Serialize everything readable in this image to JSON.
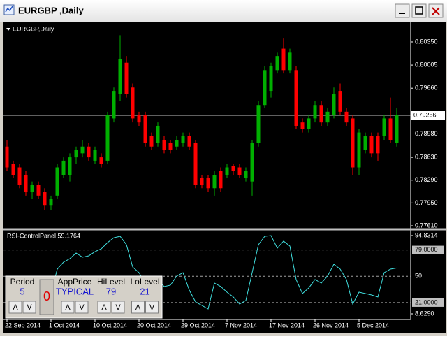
{
  "window": {
    "title": "EURGBP ,Daily"
  },
  "chart_data": [
    {
      "type": "candlestick",
      "title": "EURGBP,Daily",
      "categories": [
        "22 Sep 2014",
        null,
        null,
        null,
        null,
        null,
        null,
        "1 Oct 2014",
        null,
        null,
        null,
        null,
        null,
        null,
        "10 Oct 2014",
        null,
        null,
        null,
        null,
        null,
        null,
        "20 Oct 2014",
        null,
        null,
        null,
        null,
        null,
        null,
        "29 Oct 2014",
        null,
        null,
        null,
        null,
        null,
        null,
        "7 Nov 2014",
        null,
        null,
        null,
        null,
        null,
        null,
        "17 Nov 2014",
        null,
        null,
        null,
        null,
        null,
        null,
        "26 Nov 2014",
        null,
        null,
        null,
        null,
        null,
        null,
        "5 Dec 2014",
        null,
        null,
        null,
        null,
        null,
        null
      ],
      "open": [
        0.7879,
        0.7853,
        0.7848,
        0.7837,
        0.7811,
        0.7822,
        0.7811,
        0.7791,
        0.7806,
        0.7837,
        0.7837,
        0.7863,
        0.7869,
        0.7879,
        0.7858,
        0.7863,
        0.7858,
        0.7921,
        0.7957,
        0.8004,
        0.7967,
        0.7926,
        0.7926,
        0.7895,
        0.7884,
        0.7889,
        0.7884,
        0.7879,
        0.7884,
        0.7895,
        0.7884,
        0.7832,
        0.7832,
        0.7817,
        0.7843,
        0.7837,
        0.785,
        0.7848,
        0.7832,
        0.7827,
        0.7884,
        0.7941,
        0.7962,
        0.7993,
        0.8025,
        0.7993,
        0.7993,
        0.7915,
        0.7905,
        0.7921,
        0.7941,
        0.7915,
        0.7926,
        0.7962,
        0.7931,
        0.7921,
        0.7848,
        0.7874,
        0.7895,
        0.7895,
        0.7895,
        0.7921,
        0.7884
      ],
      "high": [
        0.7889,
        0.7858,
        0.7853,
        0.7843,
        0.7827,
        0.7827,
        0.7817,
        0.7806,
        0.7853,
        0.7863,
        0.7869,
        0.7879,
        0.7889,
        0.7884,
        0.7879,
        0.7869,
        0.7931,
        0.7967,
        0.8045,
        0.8014,
        0.7973,
        0.7931,
        0.7931,
        0.79,
        0.7915,
        0.7895,
        0.7889,
        0.7895,
        0.79,
        0.79,
        0.7889,
        0.7837,
        0.7837,
        0.7843,
        0.7848,
        0.7853,
        0.7853,
        0.7853,
        0.7848,
        0.7889,
        0.7947,
        0.7999,
        0.8004,
        0.8019,
        0.804,
        0.8025,
        0.7999,
        0.7921,
        0.7926,
        0.7947,
        0.7947,
        0.7936,
        0.7967,
        0.7973,
        0.7936,
        0.7926,
        0.7905,
        0.79,
        0.79,
        0.79,
        0.7926,
        0.7952,
        0.7936
      ],
      "low": [
        0.7843,
        0.7832,
        0.7817,
        0.7806,
        0.7801,
        0.7801,
        0.7785,
        0.7785,
        0.7801,
        0.7832,
        0.7827,
        0.7853,
        0.7863,
        0.7858,
        0.7853,
        0.7848,
        0.7853,
        0.7915,
        0.7947,
        0.7952,
        0.7915,
        0.791,
        0.7879,
        0.7874,
        0.7879,
        0.7869,
        0.7869,
        0.7874,
        0.7879,
        0.7874,
        0.7817,
        0.7817,
        0.7811,
        0.7806,
        0.7811,
        0.7832,
        0.7837,
        0.7832,
        0.7827,
        0.7806,
        0.7879,
        0.7936,
        0.7952,
        0.7988,
        0.7988,
        0.7988,
        0.7905,
        0.79,
        0.79,
        0.7915,
        0.791,
        0.791,
        0.7921,
        0.7926,
        0.791,
        0.7837,
        0.7837,
        0.7869,
        0.7863,
        0.7858,
        0.7889,
        0.7884,
        0.7879
      ],
      "close": [
        0.7848,
        0.7837,
        0.7822,
        0.7811,
        0.7822,
        0.7806,
        0.7791,
        0.7801,
        0.7848,
        0.7858,
        0.7863,
        0.7874,
        0.7879,
        0.7863,
        0.7874,
        0.7853,
        0.7926,
        0.7962,
        0.8009,
        0.7957,
        0.7921,
        0.7915,
        0.7884,
        0.7879,
        0.791,
        0.7874,
        0.7874,
        0.7889,
        0.7895,
        0.7879,
        0.7822,
        0.7822,
        0.7817,
        0.7837,
        0.7817,
        0.7848,
        0.7843,
        0.7837,
        0.7843,
        0.7884,
        0.7941,
        0.7993,
        0.7999,
        0.8014,
        0.7993,
        0.8019,
        0.791,
        0.7905,
        0.7921,
        0.7941,
        0.7915,
        0.7931,
        0.7957,
        0.7931,
        0.7915,
        0.7848,
        0.79,
        0.7895,
        0.7869,
        0.7869,
        0.7921,
        0.7889,
        0.7926
      ],
      "up_color": "#00b000",
      "down_color": "#ff0000",
      "ylim": [
        0.77579,
        0.80631
      ],
      "yticks": [
        {
          "value": 0.8035,
          "label": "0.80350"
        },
        {
          "value": 0.80005,
          "label": "0.80005"
        },
        {
          "value": 0.7966,
          "label": "0.79660"
        },
        {
          "value": 0.7898,
          "label": "0.78980"
        },
        {
          "value": 0.7863,
          "label": "0.78630"
        },
        {
          "value": 0.7829,
          "label": "0.78290"
        },
        {
          "value": 0.7795,
          "label": "0.77950"
        },
        {
          "value": 0.7761,
          "label": "0.77610"
        }
      ],
      "current_price": {
        "value": 0.79256,
        "label": "0.79256"
      }
    },
    {
      "type": "line",
      "title": "RSI-ControlPanel 59.1764",
      "values": [
        38.7,
        34.8,
        31,
        27.2,
        31,
        27.2,
        23.3,
        31,
        57.9,
        65.6,
        69.4,
        75.6,
        71,
        72.5,
        77.1,
        80.2,
        87.1,
        92.5,
        94,
        84.8,
        60.2,
        54,
        42.5,
        38.7,
        46.4,
        38.7,
        40.2,
        50.2,
        54,
        34.8,
        21.7,
        17.9,
        14,
        42.5,
        38.7,
        32.5,
        27.2,
        19.4,
        23.3,
        54,
        84.8,
        94,
        94.8,
        81,
        88.7,
        83.3,
        46.4,
        31,
        37.1,
        46.4,
        42.5,
        50.2,
        63.3,
        57.9,
        46.4,
        19.4,
        32.5,
        31,
        29.4,
        27.2,
        54,
        57.9,
        59.1764
      ],
      "color": "#40e0e0",
      "ylim": [
        8.629,
        94.8314
      ],
      "yticks": [
        94.8314,
        {
          "value": 8.629,
          "label": "8.6290"
        }
      ],
      "levels": [
        {
          "value": 79,
          "label": "79.0000",
          "boxed": true
        },
        {
          "value": 50,
          "label": "50",
          "boxed": false
        },
        {
          "value": 21,
          "label": "21.0000",
          "boxed": true
        }
      ]
    }
  ],
  "control_panel": {
    "fields": [
      {
        "label": "Period",
        "value": 5
      },
      {
        "label": "AppPrice",
        "value": "TYPICAL"
      },
      {
        "label": "HiLevel",
        "value": 79
      },
      {
        "label": "LoLevel",
        "value": 21
      }
    ],
    "reset_button": "0",
    "up_button": "Λ",
    "down_button": "V"
  }
}
